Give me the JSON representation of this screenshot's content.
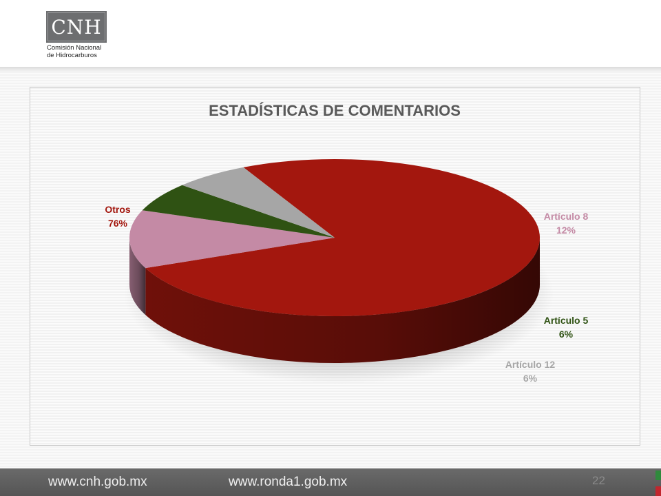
{
  "header": {
    "logo_text": "CNH",
    "logo_subtitle_line1": "Comisión Nacional",
    "logo_subtitle_line2": "de Hidrocarburos"
  },
  "chart_data": {
    "type": "pie",
    "title": "ESTADÍSTICAS DE COMENTARIOS",
    "slices": [
      {
        "name": "Otros",
        "value": 76,
        "label": "76%",
        "color": "#a3170e"
      },
      {
        "name": "Artículo 8",
        "value": 12,
        "label": "12%",
        "color": "#c48aa5"
      },
      {
        "name": "Artículo 5",
        "value": 6,
        "label": "6%",
        "color": "#2f5213"
      },
      {
        "name": "Artículo 12",
        "value": 6,
        "label": "6%",
        "color": "#a6a6a6"
      }
    ],
    "style": "3d"
  },
  "footer": {
    "link1": "www.cnh.gob.mx",
    "link2": "www.ronda1.gob.mx",
    "page_number": "22"
  },
  "colors": {
    "footer_bg": "#5e5e5e",
    "flag_green": "#2f8a3c",
    "flag_red": "#c2262e"
  }
}
